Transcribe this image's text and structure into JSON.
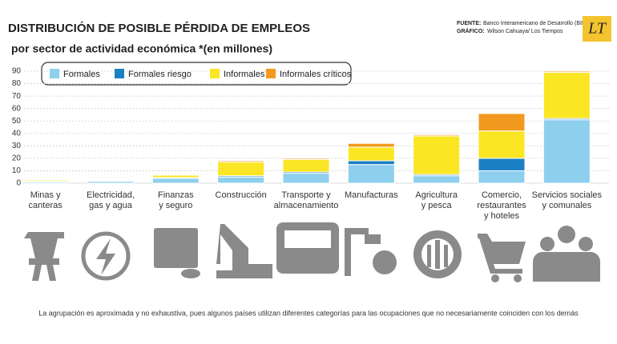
{
  "header": {
    "title": "DISTRIBUCIÓN DE POSIBLE PÉRDIDA DE EMPLEOS",
    "subtitle": "por sector de actividad económica *(en millones)",
    "source_label": "FUENTE:",
    "source": "Banco Interamericano de Desarrollo (BID)",
    "credit_label": "GRÁFICO:",
    "credit": "Wilson Cahuaya/ Los Tiempos",
    "logo": "LT"
  },
  "chart_data": {
    "type": "stacked_bar",
    "categories": [
      "Minas y\ncanteras",
      "Electricidad,\ngas y agua",
      "Finanzas\ny seguro",
      "Construcción",
      "Transporte y\nalmacenamiento",
      "Manufacturas",
      "Agricultura\ny pesca",
      "Comercio,\nrestaurantes\ny hoteles",
      "Servicios sociales\ny comunales"
    ],
    "series": [
      {
        "name": "Formales",
        "color": "#8fcfee",
        "values": [
          1,
          1.5,
          4,
          5,
          8,
          15,
          6,
          10,
          51
        ]
      },
      {
        "name": "Formales riesgo",
        "color": "#1b7fc4",
        "values": [
          0.5,
          0.3,
          0.5,
          1,
          1,
          3,
          1,
          10,
          1
        ]
      },
      {
        "name": "Informales",
        "color": "#fbe624",
        "values": [
          1,
          0.3,
          2,
          11,
          10,
          11,
          31,
          22,
          37
        ]
      },
      {
        "name": "Informales críticos",
        "color": "#f29a1f",
        "values": [
          0.2,
          0.1,
          0.5,
          1,
          1,
          3,
          1,
          14,
          1
        ]
      }
    ],
    "ylim": [
      0,
      90
    ],
    "yticks": [
      0,
      10,
      20,
      30,
      40,
      50,
      60,
      70,
      80,
      90
    ],
    "grid": true
  },
  "footnote": "La agrupación es aproximada y no exhaustiva, pues algunos países utilizan diferentes categorías para las ocupaciones que no necesariamente coinciden con los demás"
}
